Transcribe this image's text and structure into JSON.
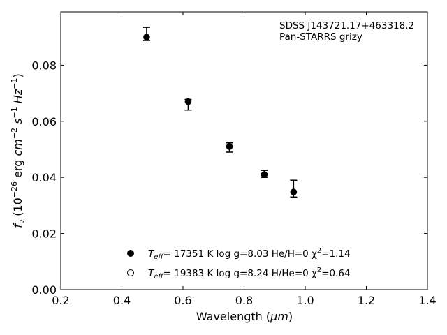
{
  "chart_data": {
    "type": "scatter",
    "xlabel_main": "Wavelength (",
    "xlabel_unit": "μm",
    "xlabel_close": ")",
    "ylabel": {
      "f": "f",
      "nu": "ν",
      "open": " (10",
      "exp1": "−26",
      "erg": " erg ",
      "cm": "cm",
      "exp2": "−2",
      "s": " s",
      "exp3": "−1",
      "hz": " Hz",
      "exp4": "−1",
      "close": ")"
    },
    "xlim": [
      0.2,
      1.4
    ],
    "ylim": [
      0.0,
      0.099
    ],
    "xticks": [
      "0.2",
      "0.4",
      "0.6",
      "0.8",
      "1.0",
      "1.2",
      "1.4"
    ],
    "yticks": [
      "0.00",
      "0.02",
      "0.04",
      "0.06",
      "0.08"
    ],
    "annotation": [
      "SDSS J143721.17+463318.2",
      "Pan-STARRS grizy"
    ],
    "series": [
      {
        "points": [
          {
            "x": 0.481,
            "y": 0.09,
            "err_low": 0.0888,
            "err_high": 0.0935
          },
          {
            "x": 0.617,
            "y": 0.067,
            "err_low": 0.064,
            "err_high": 0.0678
          },
          {
            "x": 0.752,
            "y": 0.051,
            "err_low": 0.049,
            "err_high": 0.0523
          },
          {
            "x": 0.866,
            "y": 0.041,
            "err_low": 0.04,
            "err_high": 0.0425
          },
          {
            "x": 0.962,
            "y": 0.0348,
            "err_low": 0.033,
            "err_high": 0.039
          }
        ]
      }
    ],
    "legend": [
      {
        "marker": "filled-circle",
        "t": "T",
        "eff": "eff",
        "text": "= 17351 K  log g=8.03  He/H=0  χ",
        "sup": "2",
        "chi": "=1.14"
      },
      {
        "marker": "open-circle",
        "t": "T",
        "eff": "eff",
        "text": "= 19383 K  log g=8.24  H/He=0  χ",
        "sup": "2",
        "chi": "=0.64"
      }
    ],
    "legend_position": "bottom-center",
    "grid": false
  }
}
